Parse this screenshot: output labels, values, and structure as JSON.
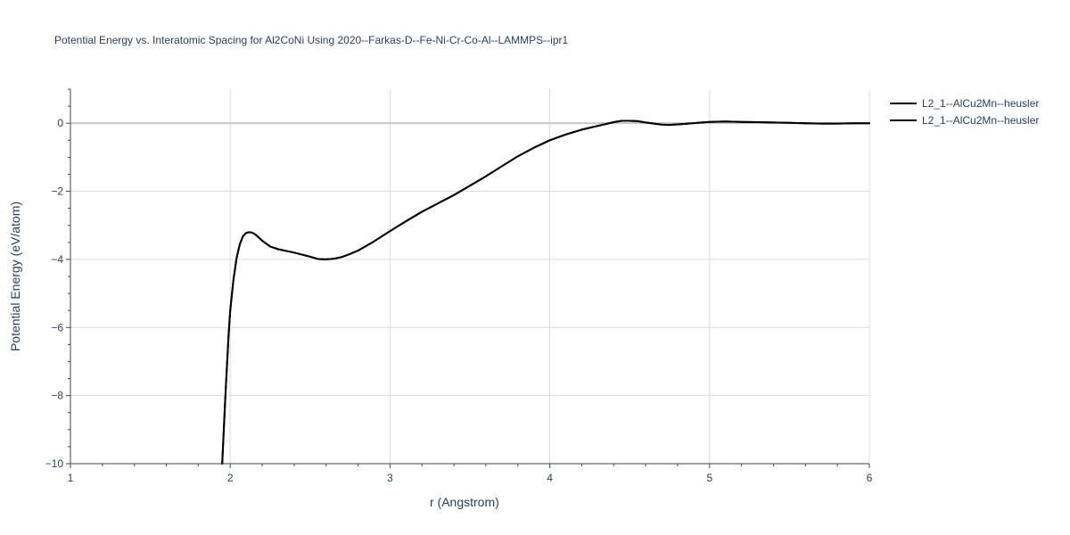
{
  "chart_data": {
    "type": "line",
    "title": "Potential Energy vs. Interatomic Spacing for Al2CoNi Using 2020--Farkas-D--Fe-Ni-Cr-Co-Al--LAMMPS--ipr1",
    "xlabel": "r (Angstrom)",
    "ylabel": "Potential Energy (eV/atom)",
    "xlim": [
      1,
      6
    ],
    "ylim": [
      -10,
      1
    ],
    "x_ticks": [
      1,
      2,
      3,
      4,
      5,
      6
    ],
    "x_tick_labels": [
      "1",
      "2",
      "3",
      "4",
      "5",
      "6"
    ],
    "y_ticks": [
      -10,
      -8,
      -6,
      -4,
      -2,
      0
    ],
    "y_tick_labels": [
      "−10",
      "−8",
      "−6",
      "−4",
      "−2",
      "0"
    ],
    "grid": true,
    "legend_position": "top-right",
    "series": [
      {
        "name": "L2_1--AlCu2Mn--heusler",
        "color": "#000000",
        "x": [
          1.95,
          1.97,
          1.99,
          2.0,
          2.02,
          2.04,
          2.06,
          2.08,
          2.1,
          2.12,
          2.14,
          2.16,
          2.2,
          2.25,
          2.3,
          2.4,
          2.5,
          2.55,
          2.6,
          2.65,
          2.7,
          2.75,
          2.8,
          2.9,
          3.0,
          3.1,
          3.2,
          3.4,
          3.6,
          3.8,
          3.9,
          4.0,
          4.1,
          4.2,
          4.3,
          4.4,
          4.45,
          4.5,
          4.55,
          4.6,
          4.7,
          4.75,
          4.85,
          4.95,
          5.0,
          5.1,
          5.2,
          5.3,
          5.4,
          5.5,
          5.6,
          5.7,
          5.8,
          5.9,
          6.0
        ],
        "y": [
          -10.0,
          -8.0,
          -6.2,
          -5.5,
          -4.6,
          -3.95,
          -3.55,
          -3.32,
          -3.22,
          -3.2,
          -3.22,
          -3.28,
          -3.45,
          -3.62,
          -3.7,
          -3.8,
          -3.92,
          -3.99,
          -4.0,
          -3.98,
          -3.93,
          -3.84,
          -3.74,
          -3.47,
          -3.17,
          -2.88,
          -2.6,
          -2.11,
          -1.56,
          -0.97,
          -0.72,
          -0.5,
          -0.33,
          -0.19,
          -0.08,
          0.03,
          0.07,
          0.07,
          0.06,
          0.02,
          -0.04,
          -0.05,
          -0.02,
          0.02,
          0.04,
          0.05,
          0.04,
          0.03,
          0.02,
          0.01,
          0.0,
          -0.01,
          -0.01,
          0.0,
          0.0
        ]
      },
      {
        "name": "L2_1--AlCu2Mn--heusler",
        "color": "#000000",
        "x": [
          1.95,
          1.97,
          1.99,
          2.0,
          2.02,
          2.04,
          2.06,
          2.08,
          2.1,
          2.12,
          2.14,
          2.16,
          2.2,
          2.25,
          2.3,
          2.4,
          2.5,
          2.55,
          2.6,
          2.65,
          2.7,
          2.75,
          2.8,
          2.9,
          3.0,
          3.1,
          3.2,
          3.4,
          3.6,
          3.8,
          3.9,
          4.0,
          4.1,
          4.2,
          4.3,
          4.4,
          4.45,
          4.5,
          4.55,
          4.6,
          4.7,
          4.75,
          4.85,
          4.95,
          5.0,
          5.1,
          5.2,
          5.3,
          5.4,
          5.5,
          5.6,
          5.7,
          5.8,
          5.9,
          6.0
        ],
        "y": [
          -10.0,
          -8.0,
          -6.2,
          -5.5,
          -4.6,
          -3.95,
          -3.55,
          -3.32,
          -3.22,
          -3.2,
          -3.22,
          -3.28,
          -3.45,
          -3.62,
          -3.7,
          -3.8,
          -3.92,
          -3.99,
          -4.0,
          -3.98,
          -3.93,
          -3.84,
          -3.74,
          -3.47,
          -3.17,
          -2.88,
          -2.6,
          -2.11,
          -1.56,
          -0.97,
          -0.72,
          -0.5,
          -0.33,
          -0.19,
          -0.08,
          0.03,
          0.07,
          0.07,
          0.06,
          0.02,
          -0.04,
          -0.05,
          -0.02,
          0.02,
          0.04,
          0.05,
          0.04,
          0.03,
          0.02,
          0.01,
          0.0,
          -0.01,
          -0.01,
          0.0,
          0.0
        ]
      }
    ]
  }
}
